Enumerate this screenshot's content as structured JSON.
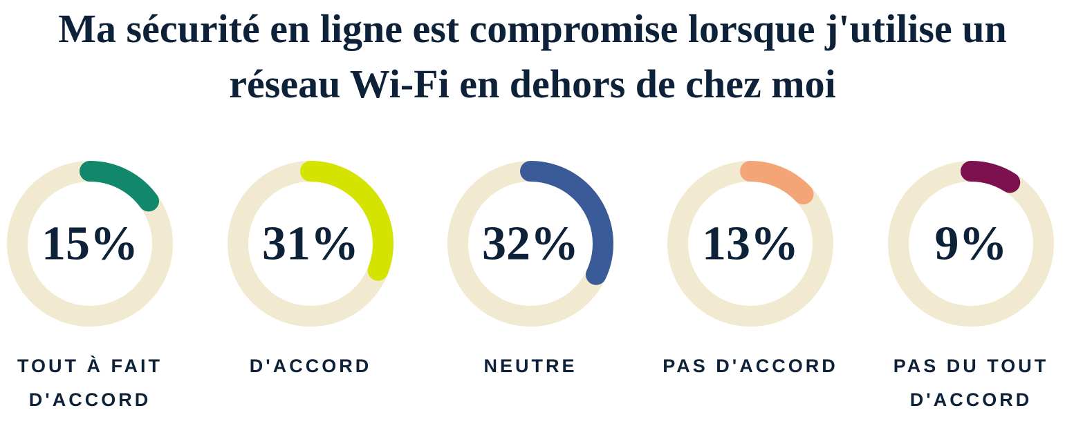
{
  "chart_data": {
    "type": "radial-progress",
    "title": "Ma sécurité en ligne est compromise lorsque j'utilise un réseau Wi-Fi en dehors de chez moi",
    "categories": [
      "TOUT À FAIT D'ACCORD",
      "D'ACCORD",
      "NEUTRE",
      "PAS D'ACCORD",
      "PAS DU TOUT D'ACCORD"
    ],
    "values": [
      15,
      31,
      32,
      13,
      9
    ],
    "value_labels": [
      "15%",
      "31%",
      "32%",
      "13%",
      "9%"
    ],
    "colors": [
      "#11876b",
      "#d4e300",
      "#3a5a98",
      "#f4a577",
      "#7d1150"
    ],
    "track_color": "#f1ead0",
    "ylim": [
      0,
      100
    ]
  }
}
